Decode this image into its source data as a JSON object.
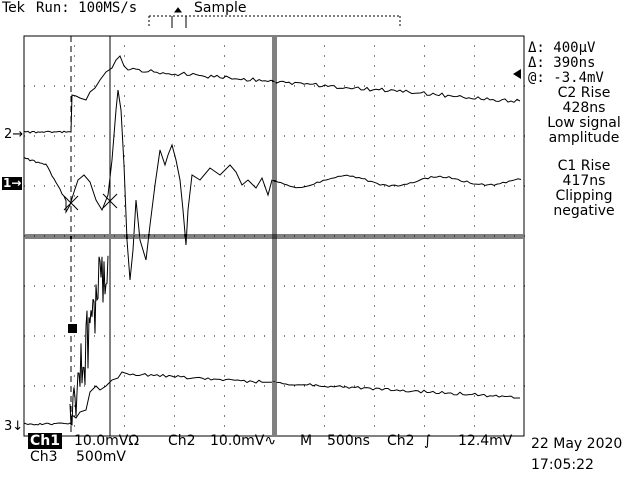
{
  "header": {
    "brand": "Tek",
    "run_state": "Run: 100MS/s",
    "acq_mode": "Sample"
  },
  "readouts": {
    "delta_v": "Δ: 400µV",
    "delta_t": "Δ: 390ns",
    "at_v": "@: -3.4mV",
    "c2_note": [
      "C2 Rise",
      "428ns",
      "Low signal",
      "amplitude"
    ],
    "c1_note": [
      "C1 Rise",
      "417ns",
      "Clipping",
      "negative"
    ]
  },
  "channel_markers": {
    "ch2": "2→",
    "ch1": "1→",
    "ch3": "3↓"
  },
  "footer": {
    "ch1_label": "Ch1",
    "ch1_scale": "10.0mVΩ",
    "ch2_label": "Ch2",
    "ch2_scale": "10.0mV∿",
    "time_label": "M",
    "time_scale": "500ns",
    "trig_src": "Ch2",
    "trig_slope": "∫",
    "trig_level": "12.4mV",
    "ch3_label": "Ch3",
    "ch3_scale": "500mV",
    "date": "22 May 2020",
    "time": "17:05:22"
  },
  "colors": {
    "trace": "#000000",
    "background": "#ffffff"
  }
}
